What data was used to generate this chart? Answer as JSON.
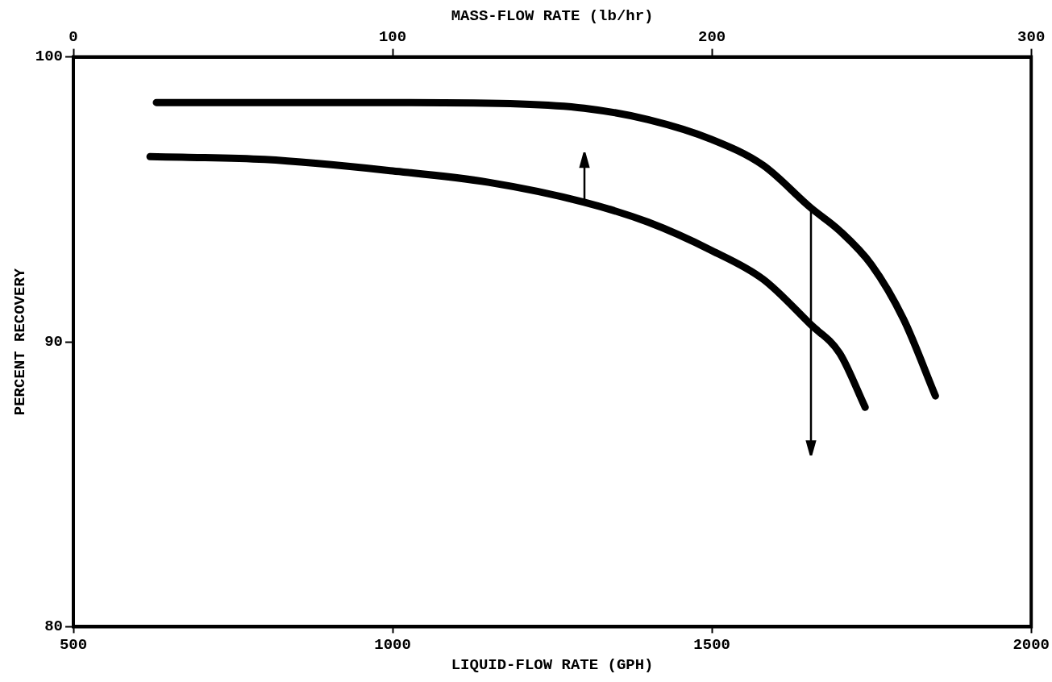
{
  "chart_data": {
    "type": "line",
    "xlabel": "LIQUID-FLOW RATE (GPH)",
    "x2label": "MASS-FLOW RATE (lb/hr)",
    "ylabel": "PERCENT RECOVERY",
    "xlim": [
      500,
      2000
    ],
    "xticks": [
      500,
      1000,
      1500,
      2000
    ],
    "x2lim": [
      0,
      300
    ],
    "x2ticks": [
      0,
      100,
      200,
      300
    ],
    "ylim": [
      80,
      100
    ],
    "yticks": [
      80,
      90,
      100
    ],
    "grid": false,
    "legend": false,
    "marker": "none",
    "line_style": "solid",
    "series": [
      {
        "color": "#000000",
        "x": [
          630,
          800,
          1000,
          1200,
          1300,
          1400,
          1500,
          1580,
          1655,
          1700,
          1750,
          1800,
          1850
        ],
        "values": [
          98.4,
          98.4,
          98.4,
          98.35,
          98.2,
          97.8,
          97.1,
          96.2,
          94.7,
          93.9,
          92.7,
          90.8,
          88.1
        ]
      },
      {
        "color": "#000000",
        "x": [
          620,
          800,
          1000,
          1150,
          1300,
          1400,
          1500,
          1580,
          1655,
          1700,
          1740
        ],
        "values": [
          96.5,
          96.4,
          96.0,
          95.6,
          94.9,
          94.2,
          93.2,
          92.2,
          90.6,
          89.6,
          87.7
        ]
      }
    ]
  }
}
